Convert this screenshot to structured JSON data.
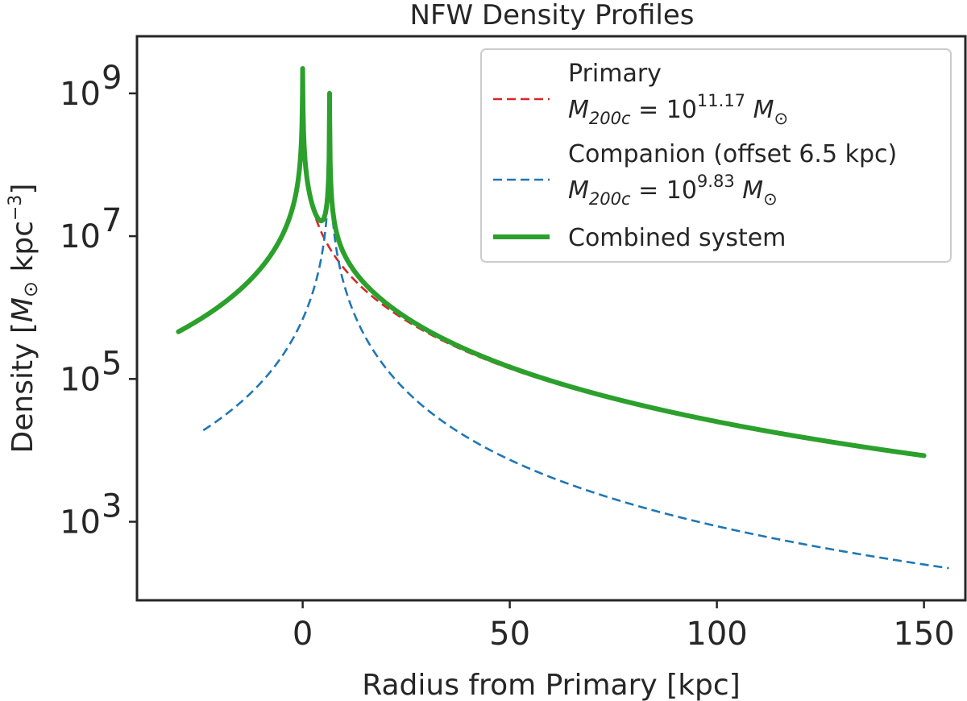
{
  "chart_data": {
    "type": "line",
    "title": "NFW Density Profiles",
    "xlabel": "Radius from Primary [kpc]",
    "ylabel": "Density [M⊙ kpc⁻³]",
    "xlim": [
      -40,
      160
    ],
    "ylim_log10": [
      1.9,
      9.8
    ],
    "yscale": "log",
    "xticks": [
      0,
      50,
      100,
      150
    ],
    "yticks_exponent": [
      3,
      5,
      7,
      9
    ],
    "ytick_base": "10",
    "grid": false,
    "legend_placement": "top-right",
    "series": [
      {
        "name": "Primary",
        "mass_label": {
          "prefix": "M",
          "sub": "200c",
          "mid": " = 10",
          "exp": "11.17",
          "unit": " M⊙"
        },
        "style": "dashed",
        "color": "#d62728",
        "x_range": [
          -30,
          150
        ],
        "center": 0,
        "peak_log10": 9.35,
        "ref_r": 10,
        "ref_log10": 6.55,
        "rs": 22
      },
      {
        "name": "Companion (offset 6.5 kpc)",
        "mass_label": {
          "prefix": "M",
          "sub": "200c",
          "mid": " = 10",
          "exp": "9.83",
          "unit": " M⊙"
        },
        "style": "dashed",
        "color": "#1f77b4",
        "x_range": [
          -24,
          156
        ],
        "center": 6.5,
        "peak_log10": 9.0,
        "ref_r": 30,
        "ref_log10": 4.3,
        "rs": 7
      },
      {
        "name": "Combined system",
        "style": "solid",
        "color": "#2ca02c",
        "x_range": [
          -30,
          150
        ],
        "combined_of": [
          0,
          1
        ]
      }
    ]
  }
}
